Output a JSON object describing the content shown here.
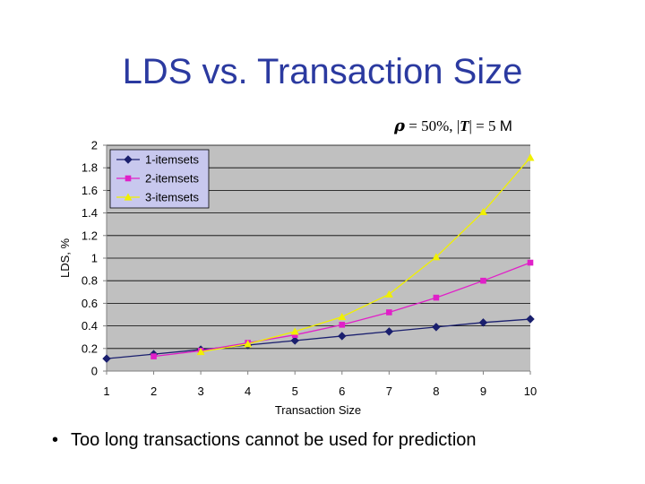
{
  "slide": {
    "title": "LDS vs. Transaction Size",
    "subtitle": {
      "rho": "ρ",
      "mid": " = 50%, |",
      "tvar": "T",
      "end": "| = 5 ",
      "unit": "M"
    },
    "bullet_symbol": "•",
    "bullet": "Too long transactions cannot be used for prediction"
  },
  "chart_data": {
    "type": "line",
    "title": "",
    "xlabel": "Transaction Size",
    "ylabel": "LDS, %",
    "categories": [
      1,
      2,
      3,
      4,
      5,
      6,
      7,
      8,
      9,
      10
    ],
    "ylim": [
      0,
      2
    ],
    "yticks": [
      0,
      0.2,
      0.4,
      0.6,
      0.8,
      1,
      1.2,
      1.4,
      1.6,
      1.8,
      2
    ],
    "ytick_labels": [
      "0",
      "0.2",
      "0.4",
      "0.6",
      "0.8",
      "1",
      "1.2",
      "1.4",
      "1.6",
      "1.8",
      "2"
    ],
    "grid": true,
    "legend_position": "top-left",
    "series": [
      {
        "name": "1-itemsets",
        "color": "#1a1f6e",
        "marker": "diamond",
        "x": [
          1,
          2,
          3,
          4,
          5,
          6,
          7,
          8,
          9,
          10
        ],
        "values": [
          0.11,
          0.15,
          0.19,
          0.23,
          0.27,
          0.31,
          0.35,
          0.39,
          0.43,
          0.46
        ]
      },
      {
        "name": "2-itemsets",
        "color": "#e020c8",
        "marker": "square",
        "x": [
          2,
          3,
          4,
          5,
          6,
          7,
          8,
          9,
          10
        ],
        "values": [
          0.13,
          0.18,
          0.25,
          0.32,
          0.41,
          0.52,
          0.65,
          0.8,
          0.96
        ]
      },
      {
        "name": "3-itemsets",
        "color": "#f0f000",
        "marker": "triangle",
        "x": [
          3,
          4,
          5,
          6,
          7,
          8,
          9,
          10
        ],
        "values": [
          0.17,
          0.24,
          0.35,
          0.48,
          0.68,
          1.01,
          1.41,
          1.89
        ]
      }
    ]
  }
}
